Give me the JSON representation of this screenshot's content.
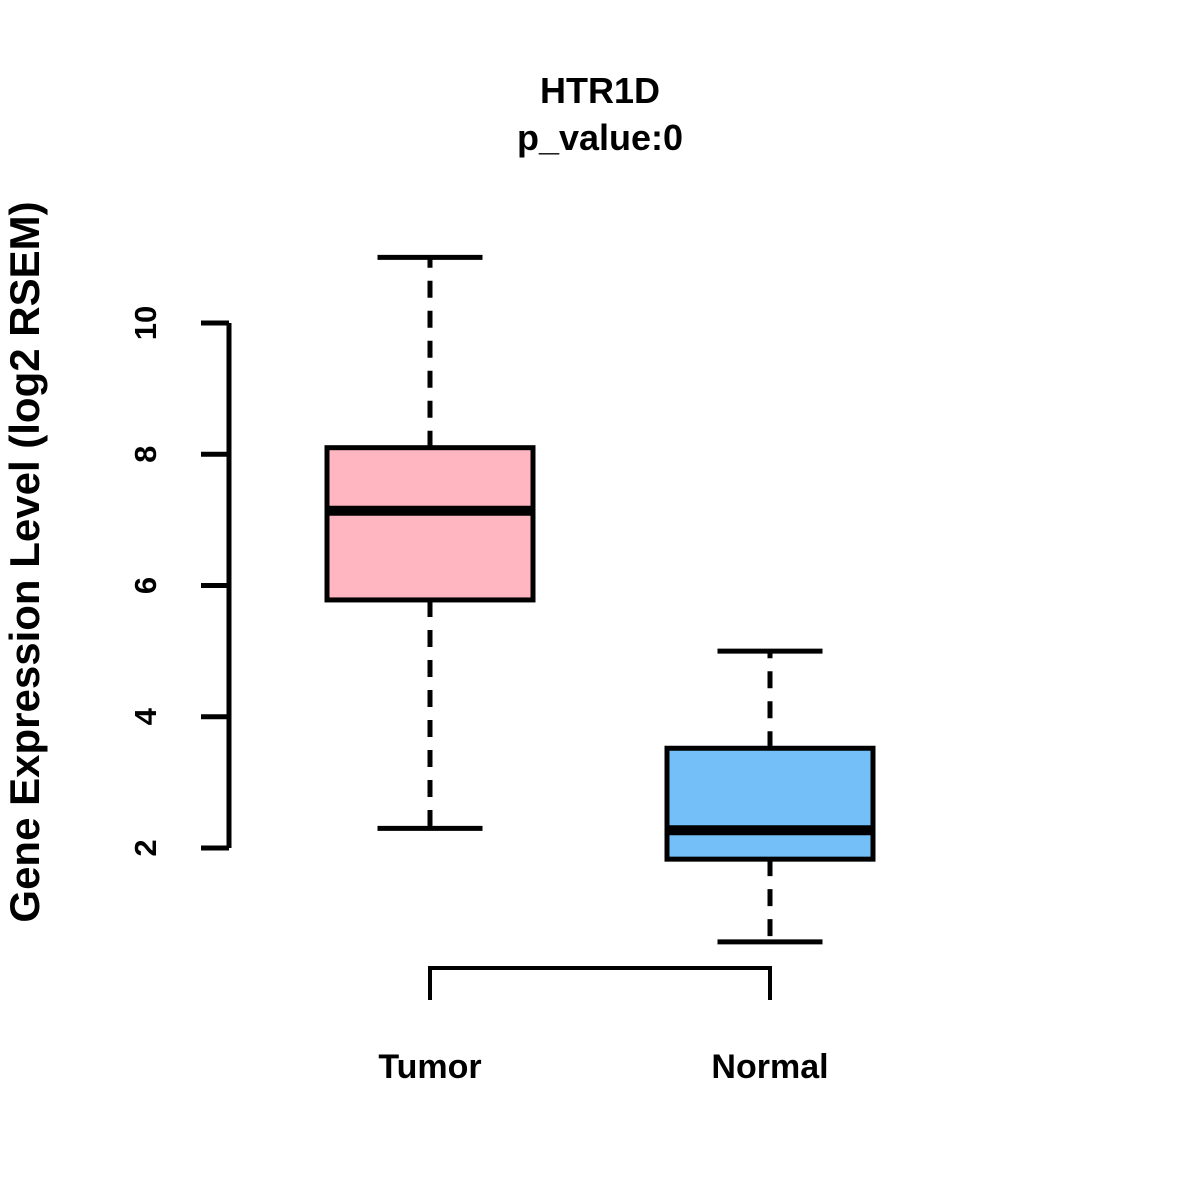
{
  "chart_data": {
    "type": "boxplot",
    "title": "HTR1D",
    "subtitle": "p_value:0",
    "ylabel": "Gene Expression Level (log2 RSEM)",
    "xlabel": "",
    "categories": [
      "Tumor",
      "Normal"
    ],
    "series": [
      {
        "name": "Tumor",
        "min": 2.3,
        "q1": 5.78,
        "median": 7.14,
        "q3": 8.1,
        "max": 11.0,
        "color": "#FFB6C1"
      },
      {
        "name": "Normal",
        "min": 0.57,
        "q1": 1.83,
        "median": 2.27,
        "q3": 3.52,
        "max": 5.0,
        "color": "#74BFF7"
      }
    ],
    "yticks": [
      2,
      4,
      6,
      8,
      10
    ],
    "y_axis_tick_range": [
      2,
      10
    ],
    "data_range": [
      0.57,
      11.0
    ],
    "grid": false,
    "legend": "none",
    "box_border_color": "#000000",
    "median_color": "#000000",
    "whisker_style": "dashed",
    "comparison_bracket": true,
    "background_color": "#ffffff"
  }
}
